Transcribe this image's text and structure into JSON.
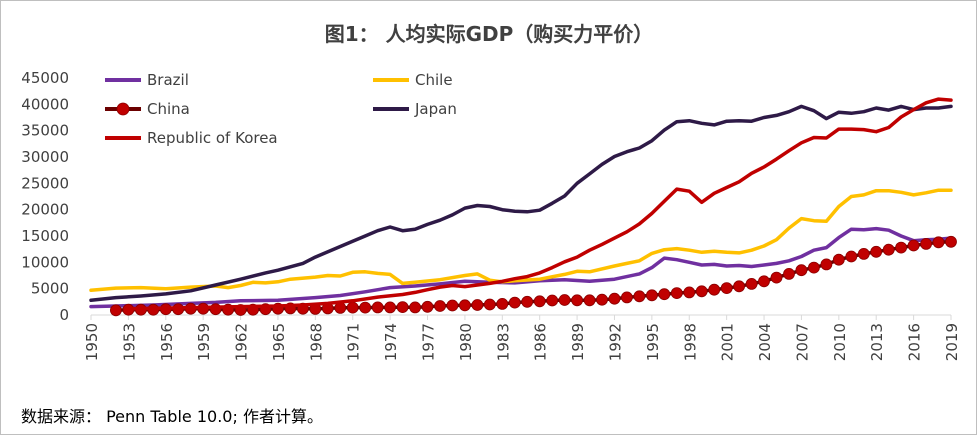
{
  "chart_data": {
    "type": "line",
    "title": "图1： 人均实际GDP（购买力平价）",
    "xlabel": "",
    "ylabel": "",
    "ylim": [
      0,
      45000
    ],
    "y_ticks": [
      0,
      5000,
      10000,
      15000,
      20000,
      25000,
      30000,
      35000,
      40000,
      45000
    ],
    "x_ticks": [
      1950,
      1953,
      1956,
      1959,
      1962,
      1965,
      1968,
      1971,
      1974,
      1977,
      1980,
      1983,
      1986,
      1989,
      1992,
      1995,
      1998,
      2001,
      2004,
      2007,
      2010,
      2013,
      2016,
      2019
    ],
    "x_start": 1950,
    "x_end": 2019,
    "grid": false,
    "legend_position": "top-left",
    "series": [
      {
        "name": "Brazil",
        "color": "#7030a0",
        "marker": false,
        "points": [
          [
            1950,
            1600
          ],
          [
            1952,
            1700
          ],
          [
            1955,
            1900
          ],
          [
            1958,
            2200
          ],
          [
            1960,
            2400
          ],
          [
            1962,
            2700
          ],
          [
            1965,
            2800
          ],
          [
            1968,
            3300
          ],
          [
            1970,
            3700
          ],
          [
            1972,
            4400
          ],
          [
            1974,
            5200
          ],
          [
            1976,
            5500
          ],
          [
            1978,
            5900
          ],
          [
            1980,
            6400
          ],
          [
            1982,
            6200
          ],
          [
            1984,
            6100
          ],
          [
            1986,
            6500
          ],
          [
            1988,
            6700
          ],
          [
            1990,
            6400
          ],
          [
            1992,
            6800
          ],
          [
            1994,
            7800
          ],
          [
            1995,
            9000
          ],
          [
            1996,
            10800
          ],
          [
            1997,
            10500
          ],
          [
            1998,
            10000
          ],
          [
            1999,
            9500
          ],
          [
            2000,
            9600
          ],
          [
            2001,
            9300
          ],
          [
            2002,
            9400
          ],
          [
            2003,
            9200
          ],
          [
            2004,
            9500
          ],
          [
            2005,
            9800
          ],
          [
            2006,
            10300
          ],
          [
            2007,
            11100
          ],
          [
            2008,
            12300
          ],
          [
            2009,
            12800
          ],
          [
            2010,
            14700
          ],
          [
            2011,
            16300
          ],
          [
            2012,
            16200
          ],
          [
            2013,
            16400
          ],
          [
            2014,
            16100
          ],
          [
            2015,
            15000
          ],
          [
            2016,
            14100
          ],
          [
            2017,
            14300
          ],
          [
            2018,
            14400
          ],
          [
            2019,
            14600
          ]
        ]
      },
      {
        "name": "Chile",
        "color": "#ffc000",
        "marker": false,
        "points": [
          [
            1950,
            4700
          ],
          [
            1952,
            5100
          ],
          [
            1954,
            5200
          ],
          [
            1956,
            5000
          ],
          [
            1958,
            5300
          ],
          [
            1960,
            5500
          ],
          [
            1961,
            5200
          ],
          [
            1962,
            5600
          ],
          [
            1963,
            6200
          ],
          [
            1964,
            6100
          ],
          [
            1965,
            6300
          ],
          [
            1966,
            6800
          ],
          [
            1968,
            7200
          ],
          [
            1969,
            7500
          ],
          [
            1970,
            7400
          ],
          [
            1971,
            8100
          ],
          [
            1972,
            8200
          ],
          [
            1973,
            7900
          ],
          [
            1974,
            7700
          ],
          [
            1975,
            6000
          ],
          [
            1976,
            6200
          ],
          [
            1978,
            6700
          ],
          [
            1980,
            7500
          ],
          [
            1981,
            7800
          ],
          [
            1982,
            6600
          ],
          [
            1983,
            6300
          ],
          [
            1984,
            6500
          ],
          [
            1986,
            6800
          ],
          [
            1988,
            7700
          ],
          [
            1989,
            8300
          ],
          [
            1990,
            8200
          ],
          [
            1992,
            9300
          ],
          [
            1993,
            9800
          ],
          [
            1994,
            10300
          ],
          [
            1995,
            11700
          ],
          [
            1996,
            12400
          ],
          [
            1997,
            12600
          ],
          [
            1998,
            12300
          ],
          [
            1999,
            11900
          ],
          [
            2000,
            12100
          ],
          [
            2001,
            11900
          ],
          [
            2002,
            11800
          ],
          [
            2003,
            12300
          ],
          [
            2004,
            13100
          ],
          [
            2005,
            14300
          ],
          [
            2006,
            16500
          ],
          [
            2007,
            18300
          ],
          [
            2008,
            17900
          ],
          [
            2009,
            17800
          ],
          [
            2010,
            20600
          ],
          [
            2011,
            22500
          ],
          [
            2012,
            22800
          ],
          [
            2013,
            23600
          ],
          [
            2014,
            23600
          ],
          [
            2015,
            23300
          ],
          [
            2016,
            22800
          ],
          [
            2017,
            23200
          ],
          [
            2018,
            23700
          ],
          [
            2019,
            23700
          ]
        ]
      },
      {
        "name": "China",
        "color": "#c00000",
        "line_color": "#6b0000",
        "marker": true,
        "points": [
          [
            1952,
            900
          ],
          [
            1953,
            1000
          ],
          [
            1954,
            1000
          ],
          [
            1955,
            1000
          ],
          [
            1956,
            1100
          ],
          [
            1957,
            1100
          ],
          [
            1958,
            1200
          ],
          [
            1959,
            1200
          ],
          [
            1960,
            1100
          ],
          [
            1961,
            1000
          ],
          [
            1962,
            950
          ],
          [
            1963,
            1000
          ],
          [
            1964,
            1100
          ],
          [
            1965,
            1200
          ],
          [
            1966,
            1250
          ],
          [
            1967,
            1200
          ],
          [
            1968,
            1150
          ],
          [
            1969,
            1250
          ],
          [
            1970,
            1350
          ],
          [
            1971,
            1400
          ],
          [
            1972,
            1400
          ],
          [
            1973,
            1450
          ],
          [
            1974,
            1450
          ],
          [
            1975,
            1500
          ],
          [
            1976,
            1450
          ],
          [
            1977,
            1550
          ],
          [
            1978,
            1700
          ],
          [
            1979,
            1800
          ],
          [
            1980,
            1850
          ],
          [
            1981,
            1900
          ],
          [
            1982,
            2000
          ],
          [
            1983,
            2100
          ],
          [
            1984,
            2350
          ],
          [
            1985,
            2500
          ],
          [
            1986,
            2600
          ],
          [
            1987,
            2750
          ],
          [
            1988,
            2850
          ],
          [
            1989,
            2800
          ],
          [
            1990,
            2800
          ],
          [
            1991,
            2900
          ],
          [
            1992,
            3100
          ],
          [
            1993,
            3350
          ],
          [
            1994,
            3550
          ],
          [
            1995,
            3750
          ],
          [
            1996,
            3950
          ],
          [
            1997,
            4150
          ],
          [
            1998,
            4300
          ],
          [
            1999,
            4500
          ],
          [
            2000,
            4800
          ],
          [
            2001,
            5100
          ],
          [
            2002,
            5450
          ],
          [
            2003,
            5900
          ],
          [
            2004,
            6400
          ],
          [
            2005,
            7100
          ],
          [
            2006,
            7800
          ],
          [
            2007,
            8500
          ],
          [
            2008,
            9000
          ],
          [
            2009,
            9600
          ],
          [
            2010,
            10500
          ],
          [
            2011,
            11100
          ],
          [
            2012,
            11600
          ],
          [
            2013,
            12000
          ],
          [
            2014,
            12400
          ],
          [
            2015,
            12800
          ],
          [
            2016,
            13200
          ],
          [
            2017,
            13500
          ],
          [
            2018,
            13800
          ],
          [
            2019,
            13900
          ]
        ]
      },
      {
        "name": "Japan",
        "color": "#2e1a47",
        "marker": false,
        "points": [
          [
            1950,
            2800
          ],
          [
            1952,
            3300
          ],
          [
            1954,
            3600
          ],
          [
            1956,
            4000
          ],
          [
            1958,
            4600
          ],
          [
            1960,
            5700
          ],
          [
            1962,
            6800
          ],
          [
            1964,
            8000
          ],
          [
            1965,
            8500
          ],
          [
            1967,
            9800
          ],
          [
            1968,
            11000
          ],
          [
            1970,
            13000
          ],
          [
            1971,
            14000
          ],
          [
            1972,
            15000
          ],
          [
            1973,
            16000
          ],
          [
            1974,
            16700
          ],
          [
            1975,
            16000
          ],
          [
            1976,
            16300
          ],
          [
            1977,
            17200
          ],
          [
            1978,
            18000
          ],
          [
            1979,
            19000
          ],
          [
            1980,
            20300
          ],
          [
            1981,
            20800
          ],
          [
            1982,
            20600
          ],
          [
            1983,
            20000
          ],
          [
            1984,
            19700
          ],
          [
            1985,
            19600
          ],
          [
            1986,
            19900
          ],
          [
            1987,
            21200
          ],
          [
            1988,
            22600
          ],
          [
            1989,
            25000
          ],
          [
            1990,
            26800
          ],
          [
            1991,
            28600
          ],
          [
            1992,
            30100
          ],
          [
            1993,
            31000
          ],
          [
            1994,
            31700
          ],
          [
            1995,
            33100
          ],
          [
            1996,
            35100
          ],
          [
            1997,
            36700
          ],
          [
            1998,
            36900
          ],
          [
            1999,
            36400
          ],
          [
            2000,
            36100
          ],
          [
            2001,
            36800
          ],
          [
            2002,
            36900
          ],
          [
            2003,
            36800
          ],
          [
            2004,
            37500
          ],
          [
            2005,
            37900
          ],
          [
            2006,
            38600
          ],
          [
            2007,
            39600
          ],
          [
            2008,
            38800
          ],
          [
            2009,
            37300
          ],
          [
            2010,
            38500
          ],
          [
            2011,
            38300
          ],
          [
            2012,
            38600
          ],
          [
            2013,
            39300
          ],
          [
            2014,
            38900
          ],
          [
            2015,
            39600
          ],
          [
            2016,
            39000
          ],
          [
            2017,
            39300
          ],
          [
            2018,
            39300
          ],
          [
            2019,
            39600
          ]
        ]
      },
      {
        "name": "Republic of Korea",
        "color": "#c00000",
        "marker": false,
        "points": [
          [
            1953,
            1200
          ],
          [
            1955,
            1300
          ],
          [
            1958,
            1400
          ],
          [
            1960,
            1500
          ],
          [
            1962,
            1600
          ],
          [
            1965,
            1700
          ],
          [
            1967,
            1900
          ],
          [
            1969,
            2200
          ],
          [
            1971,
            2700
          ],
          [
            1973,
            3400
          ],
          [
            1975,
            3900
          ],
          [
            1976,
            4300
          ],
          [
            1977,
            4800
          ],
          [
            1978,
            5300
          ],
          [
            1979,
            5600
          ],
          [
            1980,
            5400
          ],
          [
            1981,
            5700
          ],
          [
            1982,
            6000
          ],
          [
            1983,
            6400
          ],
          [
            1984,
            6900
          ],
          [
            1985,
            7300
          ],
          [
            1986,
            8000
          ],
          [
            1987,
            9000
          ],
          [
            1988,
            10100
          ],
          [
            1989,
            11000
          ],
          [
            1990,
            12300
          ],
          [
            1991,
            13400
          ],
          [
            1992,
            14600
          ],
          [
            1993,
            15800
          ],
          [
            1994,
            17300
          ],
          [
            1995,
            19300
          ],
          [
            1996,
            21600
          ],
          [
            1997,
            23900
          ],
          [
            1998,
            23500
          ],
          [
            1999,
            21400
          ],
          [
            2000,
            23100
          ],
          [
            2001,
            24200
          ],
          [
            2002,
            25300
          ],
          [
            2003,
            26900
          ],
          [
            2004,
            28100
          ],
          [
            2005,
            29600
          ],
          [
            2006,
            31200
          ],
          [
            2007,
            32700
          ],
          [
            2008,
            33700
          ],
          [
            2009,
            33600
          ],
          [
            2010,
            35300
          ],
          [
            2011,
            35300
          ],
          [
            2012,
            35200
          ],
          [
            2013,
            34800
          ],
          [
            2014,
            35600
          ],
          [
            2015,
            37600
          ],
          [
            2016,
            39000
          ],
          [
            2017,
            40300
          ],
          [
            2018,
            41000
          ],
          [
            2019,
            40800
          ]
        ]
      }
    ]
  },
  "source_note": "数据来源： Penn Table 10.0; 作者计算。"
}
